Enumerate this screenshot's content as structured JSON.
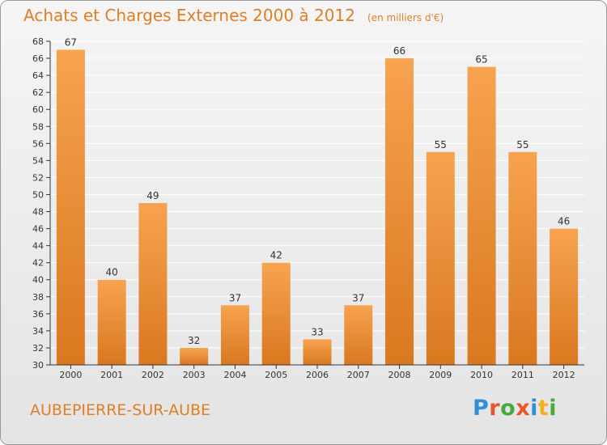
{
  "header": {
    "title": "Achats et Charges Externes 2000 à 2012",
    "unit": "(en milliers d'€)"
  },
  "footer": {
    "town": "AUBEPIERRE-SUR-AUBE",
    "logo": {
      "text": "Proxiti",
      "letter_colors": [
        "#2f8fd8",
        "#e8562a",
        "#4aa83c",
        "#e8562a",
        "#2f8fd8",
        "#f0b020",
        "#4aa83c"
      ]
    }
  },
  "colors": {
    "accent": "#e07e24",
    "bar_top": "#f7a350",
    "bar_bottom": "#d9781f",
    "grid": "#ffffff",
    "axis": "#333333"
  },
  "chart_data": {
    "type": "bar",
    "categories": [
      "2000",
      "2001",
      "2002",
      "2003",
      "2004",
      "2005",
      "2006",
      "2007",
      "2008",
      "2009",
      "2010",
      "2011",
      "2012"
    ],
    "values": [
      67,
      40,
      49,
      32,
      37,
      42,
      33,
      37,
      66,
      55,
      65,
      55,
      46
    ],
    "ylim": [
      30,
      68
    ],
    "ytick_step": 2,
    "grid": true,
    "title": "Achats et Charges Externes 2000 à 2012",
    "ylabel": "",
    "xlabel": ""
  }
}
